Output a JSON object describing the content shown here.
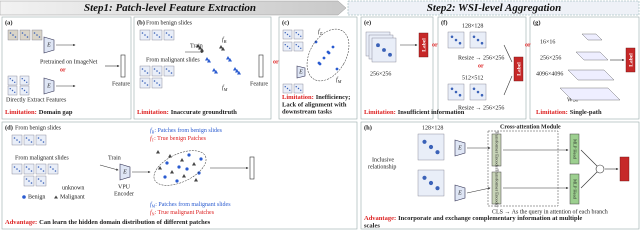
{
  "header": {
    "step1": "Step1: Patch-level Feature Extraction",
    "step2": "Step2: WSI-level Aggregation"
  },
  "a": {
    "tag": "(a)",
    "pretrained": "Pretrained on ImageNet",
    "direct": "Directly Extract Features",
    "feature": "Feature",
    "encoders": [
      "E",
      "E"
    ],
    "or": "or",
    "limitation": {
      "label": "Limitation:",
      "text": "Domain gap"
    }
  },
  "b": {
    "tag": "(b)",
    "benign": "From benign slides",
    "malignant": "From malignant slides",
    "train": "Train",
    "fB": {
      "base": "f",
      "sub": "B"
    },
    "fM": {
      "base": "f",
      "sub": "M"
    },
    "feature": "Feature",
    "limitation": {
      "label": "Limitation:",
      "text": "Inaccurate groundtruth"
    }
  },
  "or_bc": "or",
  "c": {
    "tag": "(c)",
    "encoder": "E",
    "fT": {
      "base": "f",
      "sub": "T"
    },
    "fM": {
      "base": "f",
      "sub": "M"
    },
    "limitation": {
      "label": "Limitation:",
      "text": [
        "Inefficiency;",
        "Lack of alignment with",
        "downstream tasks"
      ]
    }
  },
  "d": {
    "tag": "(d)",
    "benign": "From benign slides",
    "malignant": "From malignant slides",
    "unknown": "unknown",
    "legend": {
      "benign": "Benign",
      "malignant": "Malignant"
    },
    "train": "Train",
    "encoder": "E",
    "vpu": [
      "VPU",
      "Encoder"
    ],
    "definitions": [
      {
        "symbol": {
          "base": "f",
          "sub": "B"
        },
        "text": ": Patches from benign slides"
      },
      {
        "symbol": {
          "base": "f",
          "sub": "T"
        },
        "text": ": True benign Patches"
      },
      {
        "symbol": {
          "base": "f",
          "sub": "M"
        },
        "text": ": Patches from malignant slides"
      },
      {
        "symbol": {
          "base": "f",
          "sub": "N"
        },
        "text": ": True malignant Patches"
      }
    ],
    "advantage": {
      "label": "Advantage:",
      "text": "Can learn the hidden domain distribution of different patches"
    }
  },
  "e": {
    "tag": "(e)",
    "size": "256×256",
    "label": "Label",
    "limitation": {
      "label": "Limitation:",
      "text": "Insufficient information"
    }
  },
  "or_ef": "or",
  "f": {
    "tag": "(f)",
    "small": "128×128",
    "large": "512×512",
    "resize": [
      "Resize → 256×256",
      "Resize → 256×256"
    ],
    "or": "or",
    "label": "Label"
  },
  "or_fg": "or",
  "g": {
    "tag": "(g)",
    "levels": [
      "16×16",
      "256×256",
      "4096×4096"
    ],
    "wsi": "WSI",
    "label": "Label",
    "limitation": {
      "label": "Limitation:",
      "text": "Single-path"
    }
  },
  "h": {
    "tag": "(h)",
    "size": "128×128",
    "inclusive": [
      "Inclusive",
      "relationship"
    ],
    "module": "Cross-attention Module",
    "encoders": [
      "E",
      "E"
    ],
    "transformer": [
      "Transformer Encoder",
      "Transformer Encoder"
    ],
    "mlp": [
      "MLP Head",
      "MLP Head"
    ],
    "cls": "CLS → As the query in attention of each branch",
    "advantage": {
      "label": "Advantage:",
      "text": [
        "Incorporate and exchange complementary information at multiple",
        "scales"
      ]
    }
  }
}
